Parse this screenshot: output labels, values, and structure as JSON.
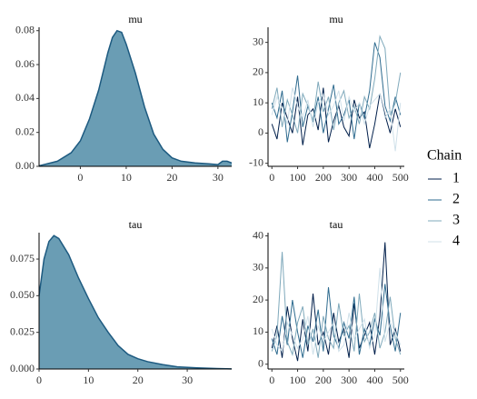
{
  "chart_data": [
    {
      "type": "area",
      "title": "mu",
      "color": "#6a9db4",
      "line_color": "#1d5a80",
      "x": [
        -9,
        -5,
        -2,
        0,
        2,
        4,
        6,
        7,
        8,
        9,
        10,
        12,
        14,
        16,
        18,
        20,
        22,
        25,
        28,
        30,
        31,
        32,
        33
      ],
      "values": [
        0.0003,
        0.003,
        0.008,
        0.015,
        0.028,
        0.045,
        0.067,
        0.076,
        0.08,
        0.079,
        0.072,
        0.055,
        0.035,
        0.019,
        0.01,
        0.005,
        0.003,
        0.002,
        0.0015,
        0.001,
        0.003,
        0.003,
        0.002
      ],
      "xlim": [
        -9,
        33
      ],
      "ylim": [
        0,
        0.082
      ],
      "xticks": [
        0,
        10,
        20,
        30
      ],
      "yticks": [
        {
          "value": 0,
          "label": "0.00"
        },
        {
          "value": 0.02,
          "label": "0.02"
        },
        {
          "value": 0.04,
          "label": "0.04"
        },
        {
          "value": 0.06,
          "label": "0.06"
        },
        {
          "value": 0.08,
          "label": "0.08"
        }
      ]
    },
    {
      "type": "line",
      "title": "mu",
      "x": [
        0,
        20,
        40,
        60,
        80,
        100,
        120,
        140,
        160,
        180,
        200,
        220,
        240,
        260,
        280,
        300,
        320,
        340,
        360,
        380,
        400,
        420,
        440,
        460,
        480,
        500
      ],
      "series": [
        {
          "name": "1",
          "color": "#011f4b",
          "values": [
            3,
            -2,
            10,
            5,
            0,
            12,
            -4,
            6,
            8,
            1,
            15,
            -3,
            4,
            9,
            2,
            -1,
            11,
            5,
            7,
            -5,
            3,
            13,
            6,
            0,
            8,
            2
          ]
        },
        {
          "name": "2",
          "color": "#2e6b8f",
          "values": [
            10,
            5,
            14,
            -3,
            7,
            19,
            2,
            9,
            4,
            12,
            0,
            8,
            16,
            3,
            6,
            11,
            -2,
            10,
            5,
            14,
            30,
            25,
            9,
            4,
            12,
            6
          ]
        },
        {
          "name": "3",
          "color": "#7fa9bb",
          "values": [
            8,
            15,
            2,
            11,
            6,
            0,
            13,
            9,
            4,
            17,
            7,
            12,
            1,
            10,
            14,
            5,
            9,
            3,
            12,
            8,
            18,
            32,
            28,
            6,
            10,
            20
          ]
        },
        {
          "name": "4",
          "color": "#d0e1ea",
          "values": [
            6,
            12,
            8,
            3,
            15,
            9,
            5,
            11,
            2,
            10,
            13,
            6,
            9,
            14,
            4,
            12,
            7,
            10,
            3,
            9,
            11,
            13,
            5,
            8,
            -6,
            10
          ]
        }
      ],
      "xlim": [
        -15,
        515
      ],
      "ylim": [
        -11,
        35
      ],
      "xticks": [
        0,
        100,
        200,
        300,
        400,
        500
      ],
      "yticks": [
        -10,
        0,
        10,
        20,
        30
      ]
    },
    {
      "type": "area",
      "title": "tau",
      "color": "#6a9db4",
      "line_color": "#1d5a80",
      "x": [
        0,
        1,
        2,
        3,
        4,
        6,
        8,
        10,
        12,
        14,
        16,
        18,
        20,
        22,
        25,
        28,
        32,
        36,
        39
      ],
      "values": [
        0.05,
        0.075,
        0.087,
        0.091,
        0.089,
        0.078,
        0.062,
        0.048,
        0.035,
        0.025,
        0.016,
        0.01,
        0.007,
        0.005,
        0.003,
        0.0015,
        0.0008,
        0.0003,
        0.0001
      ],
      "xlim": [
        0,
        39
      ],
      "ylim": [
        0,
        0.093
      ],
      "xticks": [
        0,
        10,
        20,
        30
      ],
      "yticks": [
        {
          "value": 0,
          "label": "0.000"
        },
        {
          "value": 0.025,
          "label": "0.025"
        },
        {
          "value": 0.05,
          "label": "0.050"
        },
        {
          "value": 0.075,
          "label": "0.075"
        }
      ]
    },
    {
      "type": "line",
      "title": "tau",
      "x": [
        0,
        20,
        40,
        60,
        80,
        100,
        120,
        140,
        160,
        180,
        200,
        220,
        240,
        260,
        280,
        300,
        320,
        340,
        360,
        380,
        400,
        420,
        440,
        460,
        480,
        500
      ],
      "series": [
        {
          "name": "1",
          "color": "#011f4b",
          "values": [
            5,
            12,
            2,
            18,
            8,
            1,
            14,
            4,
            22,
            6,
            10,
            3,
            16,
            7,
            11,
            2,
            19,
            5,
            9,
            13,
            3,
            15,
            38,
            6,
            11,
            4
          ]
        },
        {
          "name": "2",
          "color": "#2e6b8f",
          "values": [
            8,
            3,
            15,
            6,
            20,
            10,
            2,
            12,
            7,
            17,
            4,
            24,
            9,
            5,
            13,
            8,
            21,
            3,
            11,
            6,
            14,
            9,
            25,
            12,
            4,
            16
          ]
        },
        {
          "name": "3",
          "color": "#7fa9bb",
          "values": [
            4,
            9,
            35,
            7,
            3,
            13,
            18,
            6,
            11,
            2,
            15,
            8,
            5,
            19,
            9,
            12,
            4,
            22,
            7,
            10,
            16,
            5,
            10,
            21,
            8,
            3
          ]
        },
        {
          "name": "4",
          "color": "#d0e1ea",
          "values": [
            11,
            6,
            4,
            13,
            9,
            5,
            8,
            15,
            3,
            12,
            7,
            10,
            13,
            4,
            6,
            16,
            8,
            11,
            14,
            5,
            9,
            30,
            7,
            13,
            10,
            6
          ]
        }
      ],
      "xlim": [
        -15,
        515
      ],
      "ylim": [
        -1.5,
        41
      ],
      "xticks": [
        0,
        100,
        200,
        300,
        400,
        500
      ],
      "yticks": [
        0,
        10,
        20,
        30,
        40
      ]
    }
  ],
  "legend": {
    "title": "Chain"
  }
}
